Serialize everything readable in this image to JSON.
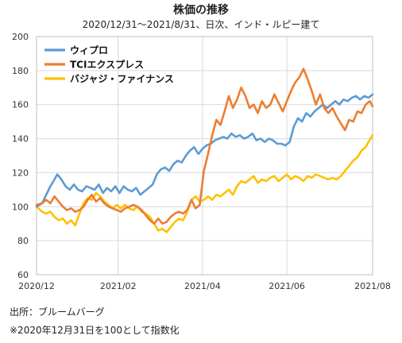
{
  "chart_data": {
    "type": "line",
    "title": "株価の推移",
    "subtitle": "2020/12/31〜2021/8/31、日次、インド・ルピー建て",
    "ylim": [
      60,
      200
    ],
    "yticks": [
      60,
      80,
      100,
      120,
      140,
      160,
      180,
      200
    ],
    "xlim": [
      "2020-12-31",
      "2021-08-31"
    ],
    "xticks": [
      {
        "date": "2020-12-31",
        "label": "2020/12"
      },
      {
        "date": "2021-02-28",
        "label": "2021/02"
      },
      {
        "date": "2021-04-30",
        "label": "2021/04"
      },
      {
        "date": "2021-06-30",
        "label": "2021/06"
      },
      {
        "date": "2021-08-31",
        "label": "2021/08"
      }
    ],
    "grid": true,
    "legend_position": "top-left",
    "series": [
      {
        "name": "ウィプロ",
        "color": "#5b9bd5",
        "points": [
          [
            "2020-12-31",
            100
          ],
          [
            "2021-01-04",
            102
          ],
          [
            "2021-01-07",
            107
          ],
          [
            "2021-01-10",
            112
          ],
          [
            "2021-01-13",
            116
          ],
          [
            "2021-01-15",
            119
          ],
          [
            "2021-01-18",
            116
          ],
          [
            "2021-01-21",
            112
          ],
          [
            "2021-01-24",
            110
          ],
          [
            "2021-01-27",
            113
          ],
          [
            "2021-01-30",
            110
          ],
          [
            "2021-02-02",
            109
          ],
          [
            "2021-02-05",
            112
          ],
          [
            "2021-02-08",
            111
          ],
          [
            "2021-02-11",
            110
          ],
          [
            "2021-02-14",
            113
          ],
          [
            "2021-02-17",
            108
          ],
          [
            "2021-02-20",
            111
          ],
          [
            "2021-02-23",
            109
          ],
          [
            "2021-02-26",
            112
          ],
          [
            "2021-03-01",
            108
          ],
          [
            "2021-03-04",
            112
          ],
          [
            "2021-03-07",
            110
          ],
          [
            "2021-03-10",
            109
          ],
          [
            "2021-03-13",
            111
          ],
          [
            "2021-03-16",
            107
          ],
          [
            "2021-03-19",
            109
          ],
          [
            "2021-03-22",
            111
          ],
          [
            "2021-03-25",
            113
          ],
          [
            "2021-03-28",
            119
          ],
          [
            "2021-03-31",
            122
          ],
          [
            "2021-04-03",
            123
          ],
          [
            "2021-04-06",
            121
          ],
          [
            "2021-04-09",
            125
          ],
          [
            "2021-04-12",
            127
          ],
          [
            "2021-04-15",
            126
          ],
          [
            "2021-04-18",
            130
          ],
          [
            "2021-04-21",
            133
          ],
          [
            "2021-04-24",
            135
          ],
          [
            "2021-04-27",
            131
          ],
          [
            "2021-04-30",
            134
          ],
          [
            "2021-05-03",
            136
          ],
          [
            "2021-05-06",
            137
          ],
          [
            "2021-05-09",
            139
          ],
          [
            "2021-05-12",
            140
          ],
          [
            "2021-05-15",
            141
          ],
          [
            "2021-05-18",
            140
          ],
          [
            "2021-05-21",
            143
          ],
          [
            "2021-05-24",
            141
          ],
          [
            "2021-05-27",
            142
          ],
          [
            "2021-05-30",
            140
          ],
          [
            "2021-06-02",
            141
          ],
          [
            "2021-06-05",
            143
          ],
          [
            "2021-06-08",
            139
          ],
          [
            "2021-06-11",
            140
          ],
          [
            "2021-06-14",
            138
          ],
          [
            "2021-06-17",
            140
          ],
          [
            "2021-06-20",
            139
          ],
          [
            "2021-06-23",
            137
          ],
          [
            "2021-06-26",
            137
          ],
          [
            "2021-06-29",
            136
          ],
          [
            "2021-07-02",
            138
          ],
          [
            "2021-07-05",
            147
          ],
          [
            "2021-07-08",
            152
          ],
          [
            "2021-07-11",
            150
          ],
          [
            "2021-07-14",
            155
          ],
          [
            "2021-07-17",
            153
          ],
          [
            "2021-07-20",
            156
          ],
          [
            "2021-07-23",
            158
          ],
          [
            "2021-07-26",
            160
          ],
          [
            "2021-07-29",
            158
          ],
          [
            "2021-08-01",
            160
          ],
          [
            "2021-08-04",
            162
          ],
          [
            "2021-08-07",
            160
          ],
          [
            "2021-08-10",
            163
          ],
          [
            "2021-08-13",
            162
          ],
          [
            "2021-08-16",
            164
          ],
          [
            "2021-08-19",
            165
          ],
          [
            "2021-08-22",
            163
          ],
          [
            "2021-08-25",
            165
          ],
          [
            "2021-08-28",
            164
          ],
          [
            "2021-08-31",
            166
          ]
        ]
      },
      {
        "name": "TCIエクスプレス",
        "color": "#ed7d31",
        "points": [
          [
            "2020-12-31",
            101
          ],
          [
            "2021-01-04",
            102
          ],
          [
            "2021-01-07",
            104
          ],
          [
            "2021-01-10",
            102
          ],
          [
            "2021-01-13",
            106
          ],
          [
            "2021-01-16",
            103
          ],
          [
            "2021-01-19",
            100
          ],
          [
            "2021-01-22",
            98
          ],
          [
            "2021-01-25",
            99
          ],
          [
            "2021-01-28",
            97
          ],
          [
            "2021-01-31",
            98
          ],
          [
            "2021-02-03",
            100
          ],
          [
            "2021-02-06",
            104
          ],
          [
            "2021-02-09",
            107
          ],
          [
            "2021-02-12",
            103
          ],
          [
            "2021-02-15",
            105
          ],
          [
            "2021-02-18",
            102
          ],
          [
            "2021-02-21",
            100
          ],
          [
            "2021-02-24",
            99
          ],
          [
            "2021-02-27",
            98
          ],
          [
            "2021-03-02",
            97
          ],
          [
            "2021-03-05",
            99
          ],
          [
            "2021-03-08",
            100
          ],
          [
            "2021-03-11",
            101
          ],
          [
            "2021-03-14",
            100
          ],
          [
            "2021-03-17",
            98
          ],
          [
            "2021-03-20",
            95
          ],
          [
            "2021-03-23",
            92
          ],
          [
            "2021-03-26",
            90
          ],
          [
            "2021-03-29",
            93
          ],
          [
            "2021-04-01",
            90
          ],
          [
            "2021-04-04",
            91
          ],
          [
            "2021-04-07",
            94
          ],
          [
            "2021-04-10",
            96
          ],
          [
            "2021-04-13",
            97
          ],
          [
            "2021-04-16",
            96
          ],
          [
            "2021-04-19",
            98
          ],
          [
            "2021-04-22",
            104
          ],
          [
            "2021-04-25",
            99
          ],
          [
            "2021-04-28",
            101
          ],
          [
            "2021-05-01",
            121
          ],
          [
            "2021-05-04",
            131
          ],
          [
            "2021-05-07",
            142
          ],
          [
            "2021-05-10",
            151
          ],
          [
            "2021-05-13",
            148
          ],
          [
            "2021-05-16",
            156
          ],
          [
            "2021-05-19",
            165
          ],
          [
            "2021-05-22",
            158
          ],
          [
            "2021-05-25",
            163
          ],
          [
            "2021-05-28",
            170
          ],
          [
            "2021-05-31",
            165
          ],
          [
            "2021-06-03",
            158
          ],
          [
            "2021-06-06",
            160
          ],
          [
            "2021-06-09",
            155
          ],
          [
            "2021-06-12",
            162
          ],
          [
            "2021-06-15",
            158
          ],
          [
            "2021-06-18",
            160
          ],
          [
            "2021-06-21",
            166
          ],
          [
            "2021-06-24",
            161
          ],
          [
            "2021-06-27",
            156
          ],
          [
            "2021-06-30",
            162
          ],
          [
            "2021-07-03",
            168
          ],
          [
            "2021-07-06",
            173
          ],
          [
            "2021-07-09",
            176
          ],
          [
            "2021-07-12",
            181
          ],
          [
            "2021-07-15",
            175
          ],
          [
            "2021-07-18",
            168
          ],
          [
            "2021-07-21",
            160
          ],
          [
            "2021-07-24",
            166
          ],
          [
            "2021-07-27",
            158
          ],
          [
            "2021-07-30",
            155
          ],
          [
            "2021-08-02",
            158
          ],
          [
            "2021-08-05",
            153
          ],
          [
            "2021-08-08",
            149
          ],
          [
            "2021-08-11",
            145
          ],
          [
            "2021-08-14",
            151
          ],
          [
            "2021-08-17",
            150
          ],
          [
            "2021-08-20",
            156
          ],
          [
            "2021-08-23",
            155
          ],
          [
            "2021-08-26",
            160
          ],
          [
            "2021-08-29",
            162
          ],
          [
            "2021-08-31",
            159
          ]
        ]
      },
      {
        "name": "バジャジ・ファイナンス",
        "color": "#ffc000",
        "points": [
          [
            "2020-12-31",
            100
          ],
          [
            "2021-01-04",
            97
          ],
          [
            "2021-01-07",
            96
          ],
          [
            "2021-01-10",
            97
          ],
          [
            "2021-01-13",
            94
          ],
          [
            "2021-01-16",
            92
          ],
          [
            "2021-01-19",
            93
          ],
          [
            "2021-01-22",
            90
          ],
          [
            "2021-01-25",
            92
          ],
          [
            "2021-01-28",
            89
          ],
          [
            "2021-01-31",
            96
          ],
          [
            "2021-02-03",
            102
          ],
          [
            "2021-02-06",
            105
          ],
          [
            "2021-02-09",
            104
          ],
          [
            "2021-02-12",
            108
          ],
          [
            "2021-02-15",
            106
          ],
          [
            "2021-02-18",
            103
          ],
          [
            "2021-02-21",
            101
          ],
          [
            "2021-02-24",
            99
          ],
          [
            "2021-02-27",
            101
          ],
          [
            "2021-03-02",
            99
          ],
          [
            "2021-03-05",
            101
          ],
          [
            "2021-03-08",
            99
          ],
          [
            "2021-03-11",
            98
          ],
          [
            "2021-03-14",
            100
          ],
          [
            "2021-03-17",
            97
          ],
          [
            "2021-03-20",
            96
          ],
          [
            "2021-03-23",
            94
          ],
          [
            "2021-03-26",
            90
          ],
          [
            "2021-03-29",
            86
          ],
          [
            "2021-04-01",
            87
          ],
          [
            "2021-04-04",
            85
          ],
          [
            "2021-04-07",
            88
          ],
          [
            "2021-04-10",
            91
          ],
          [
            "2021-04-13",
            93
          ],
          [
            "2021-04-16",
            92
          ],
          [
            "2021-04-19",
            97
          ],
          [
            "2021-04-22",
            104
          ],
          [
            "2021-04-25",
            106
          ],
          [
            "2021-04-28",
            103
          ],
          [
            "2021-05-01",
            104
          ],
          [
            "2021-05-04",
            106
          ],
          [
            "2021-05-07",
            104
          ],
          [
            "2021-05-10",
            107
          ],
          [
            "2021-05-13",
            106
          ],
          [
            "2021-05-16",
            108
          ],
          [
            "2021-05-19",
            110
          ],
          [
            "2021-05-22",
            107
          ],
          [
            "2021-05-25",
            112
          ],
          [
            "2021-05-28",
            115
          ],
          [
            "2021-05-31",
            114
          ],
          [
            "2021-06-03",
            116
          ],
          [
            "2021-06-06",
            118
          ],
          [
            "2021-06-09",
            114
          ],
          [
            "2021-06-12",
            116
          ],
          [
            "2021-06-15",
            115
          ],
          [
            "2021-06-18",
            117
          ],
          [
            "2021-06-21",
            118
          ],
          [
            "2021-06-24",
            115
          ],
          [
            "2021-06-27",
            117
          ],
          [
            "2021-06-30",
            119
          ],
          [
            "2021-07-03",
            116
          ],
          [
            "2021-07-06",
            118
          ],
          [
            "2021-07-09",
            117
          ],
          [
            "2021-07-12",
            115
          ],
          [
            "2021-07-15",
            118
          ],
          [
            "2021-07-18",
            117
          ],
          [
            "2021-07-21",
            119
          ],
          [
            "2021-07-24",
            118
          ],
          [
            "2021-07-27",
            117
          ],
          [
            "2021-07-30",
            116
          ],
          [
            "2021-08-02",
            117
          ],
          [
            "2021-08-05",
            116
          ],
          [
            "2021-08-08",
            118
          ],
          [
            "2021-08-11",
            121
          ],
          [
            "2021-08-14",
            124
          ],
          [
            "2021-08-17",
            127
          ],
          [
            "2021-08-20",
            129
          ],
          [
            "2021-08-23",
            133
          ],
          [
            "2021-08-26",
            135
          ],
          [
            "2021-08-28",
            138
          ],
          [
            "2021-08-31",
            142
          ]
        ]
      }
    ]
  },
  "footnotes": {
    "source": "出所：ブルームバーグ",
    "note": "※2020年12月31日を100として指数化"
  }
}
